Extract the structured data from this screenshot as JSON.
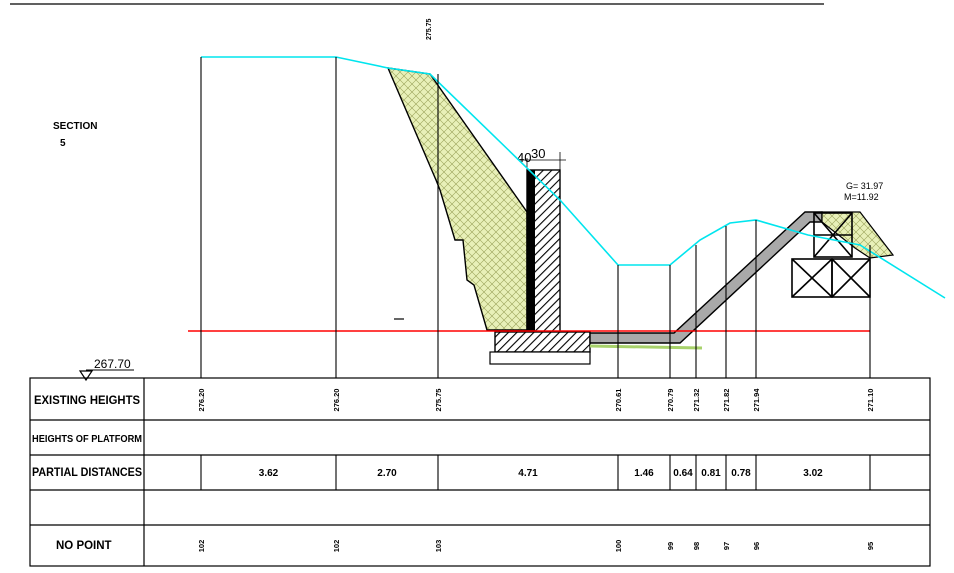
{
  "section": {
    "title": "SECTION",
    "number": "5"
  },
  "datum": {
    "label": "267.70"
  },
  "dims": {
    "a": "40",
    "b": "30"
  },
  "stats": {
    "g": "G= 31.97",
    "m": "M=11.92"
  },
  "top_label": "275.75",
  "rows": {
    "existing": "EXISTING HEIGHTS",
    "platform": "HEIGHTS OF PLATFORM",
    "partial": "PARTIAL DISTANCES",
    "blank": "",
    "nopoint": "NO POINT"
  },
  "existing_heights": [
    "276.20",
    "276.20",
    "275.75",
    "270.61",
    "270.79",
    "271.32",
    "271.82",
    "271.94",
    "271.10"
  ],
  "partial_distances": [
    "3.62",
    "2.70",
    "4.71",
    "1.46",
    "0.64",
    "0.81",
    "0.78",
    "3.02"
  ],
  "point_numbers": [
    "102",
    "102",
    "103",
    "100",
    "99",
    "98",
    "97",
    "96",
    "95"
  ],
  "colors": {
    "ground_line": "#00e5ee",
    "reference_line": "#ff0000",
    "fill_hatch": "#e8f0b8",
    "channel": "#a9a9a9",
    "green_strip": "#a8d26b"
  }
}
